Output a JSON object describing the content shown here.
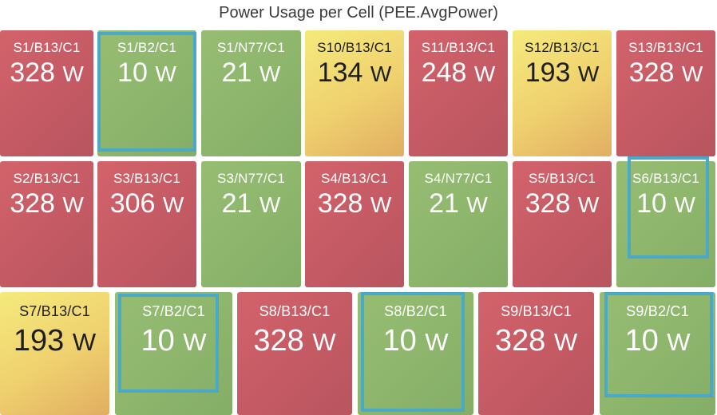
{
  "panel": {
    "title": "Power Usage per Cell (PEE.AvgPower)"
  },
  "unit": "W",
  "colors": {
    "high": "#c45a64",
    "low": "#8db56c",
    "mid": "#efd06e",
    "selection": "#4aa8c8"
  },
  "rows": [
    {
      "cells": [
        {
          "name": "S1/B13/C1",
          "value": "328",
          "level": "high"
        },
        {
          "name": "S1/B2/C1",
          "value": "10",
          "level": "low",
          "highlighted": true
        },
        {
          "name": "S1/N77/C1",
          "value": "21",
          "level": "low"
        },
        {
          "name": "S10/B13/C1",
          "value": "134",
          "level": "mid"
        },
        {
          "name": "S11/B13/C1",
          "value": "248",
          "level": "high"
        },
        {
          "name": "S12/B13/C1",
          "value": "193",
          "level": "mid"
        },
        {
          "name": "S13/B13/C1",
          "value": "328",
          "level": "high"
        }
      ]
    },
    {
      "cells": [
        {
          "name": "S2/B13/C1",
          "value": "328",
          "level": "high"
        },
        {
          "name": "S3/B13/C1",
          "value": "306",
          "level": "high"
        },
        {
          "name": "S3/N77/C1",
          "value": "21",
          "level": "low"
        },
        {
          "name": "S4/B13/C1",
          "value": "328",
          "level": "high"
        },
        {
          "name": "S4/N77/C1",
          "value": "21",
          "level": "low"
        },
        {
          "name": "S5/B13/C1",
          "value": "328",
          "level": "high"
        },
        {
          "name": "S6/B13/C1",
          "value": "10",
          "level": "low",
          "highlighted": true
        }
      ]
    },
    {
      "cells": [
        {
          "name": "S7/B13/C1",
          "value": "193",
          "level": "mid"
        },
        {
          "name": "S7/B2/C1",
          "value": "10",
          "level": "low",
          "highlighted": true
        },
        {
          "name": "S8/B13/C1",
          "value": "328",
          "level": "high"
        },
        {
          "name": "S8/B2/C1",
          "value": "10",
          "level": "low",
          "highlighted": true
        },
        {
          "name": "S9/B13/C1",
          "value": "328",
          "level": "high"
        },
        {
          "name": "S9/B2/C1",
          "value": "10",
          "level": "low",
          "highlighted": true
        }
      ]
    }
  ]
}
